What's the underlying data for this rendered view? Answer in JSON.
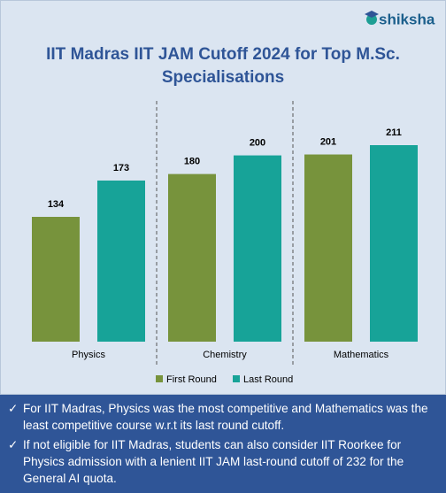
{
  "logo": "shiksha",
  "chart_data": {
    "type": "bar",
    "title_lines": [
      "IIT Madras IIT JAM Cutoff 2024 for Top M.Sc.",
      "Specialisations"
    ],
    "categories": [
      "Physics",
      "Chemistry",
      "Mathematics"
    ],
    "series": [
      {
        "name": "First Round",
        "color": "#77933c",
        "values": [
          134,
          180,
          201
        ]
      },
      {
        "name": "Last Round",
        "color": "#17a398",
        "values": [
          173,
          200,
          211
        ]
      }
    ],
    "legend": "bottom"
  },
  "notes": [
    "For IIT Madras, Physics was the most competitive and Mathematics was the least competitive course w.r.t its last round cutoff.",
    "If not eligible for IIT Madras, students can also consider IIT Roorkee for Physics admission with a lenient IIT JAM last-round cutoff of 232 for the General AI quota."
  ]
}
